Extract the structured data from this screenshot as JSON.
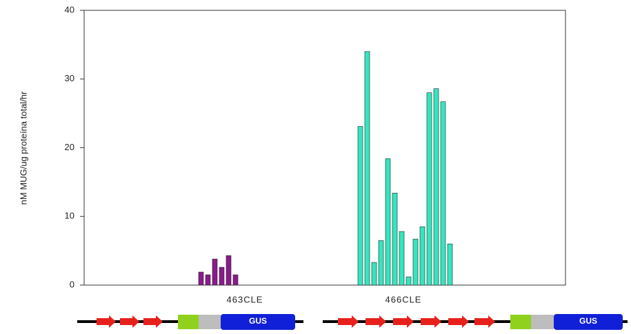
{
  "chart_data": {
    "type": "bar",
    "y_label": "nM MUG/ug proteína total/hr",
    "ylim": [
      0,
      40
    ],
    "yticks": [
      0,
      10,
      20,
      30,
      40
    ],
    "groups": [
      {
        "label": "463CLE",
        "color": "#8b1a8b",
        "values": [
          1.9,
          1.5,
          3.8,
          2.6,
          4.3,
          1.5
        ]
      },
      {
        "label": "466CLE",
        "color": "#33e6c0",
        "values": [
          23.1,
          34.0,
          3.3,
          6.5,
          18.4,
          13.4,
          7.8,
          1.2,
          6.7,
          8.5,
          28.0,
          28.6,
          26.7,
          6.0
        ]
      }
    ]
  },
  "diagrams": [
    {
      "box_label": "GUS"
    },
    {
      "box_label": "GUS"
    }
  ]
}
